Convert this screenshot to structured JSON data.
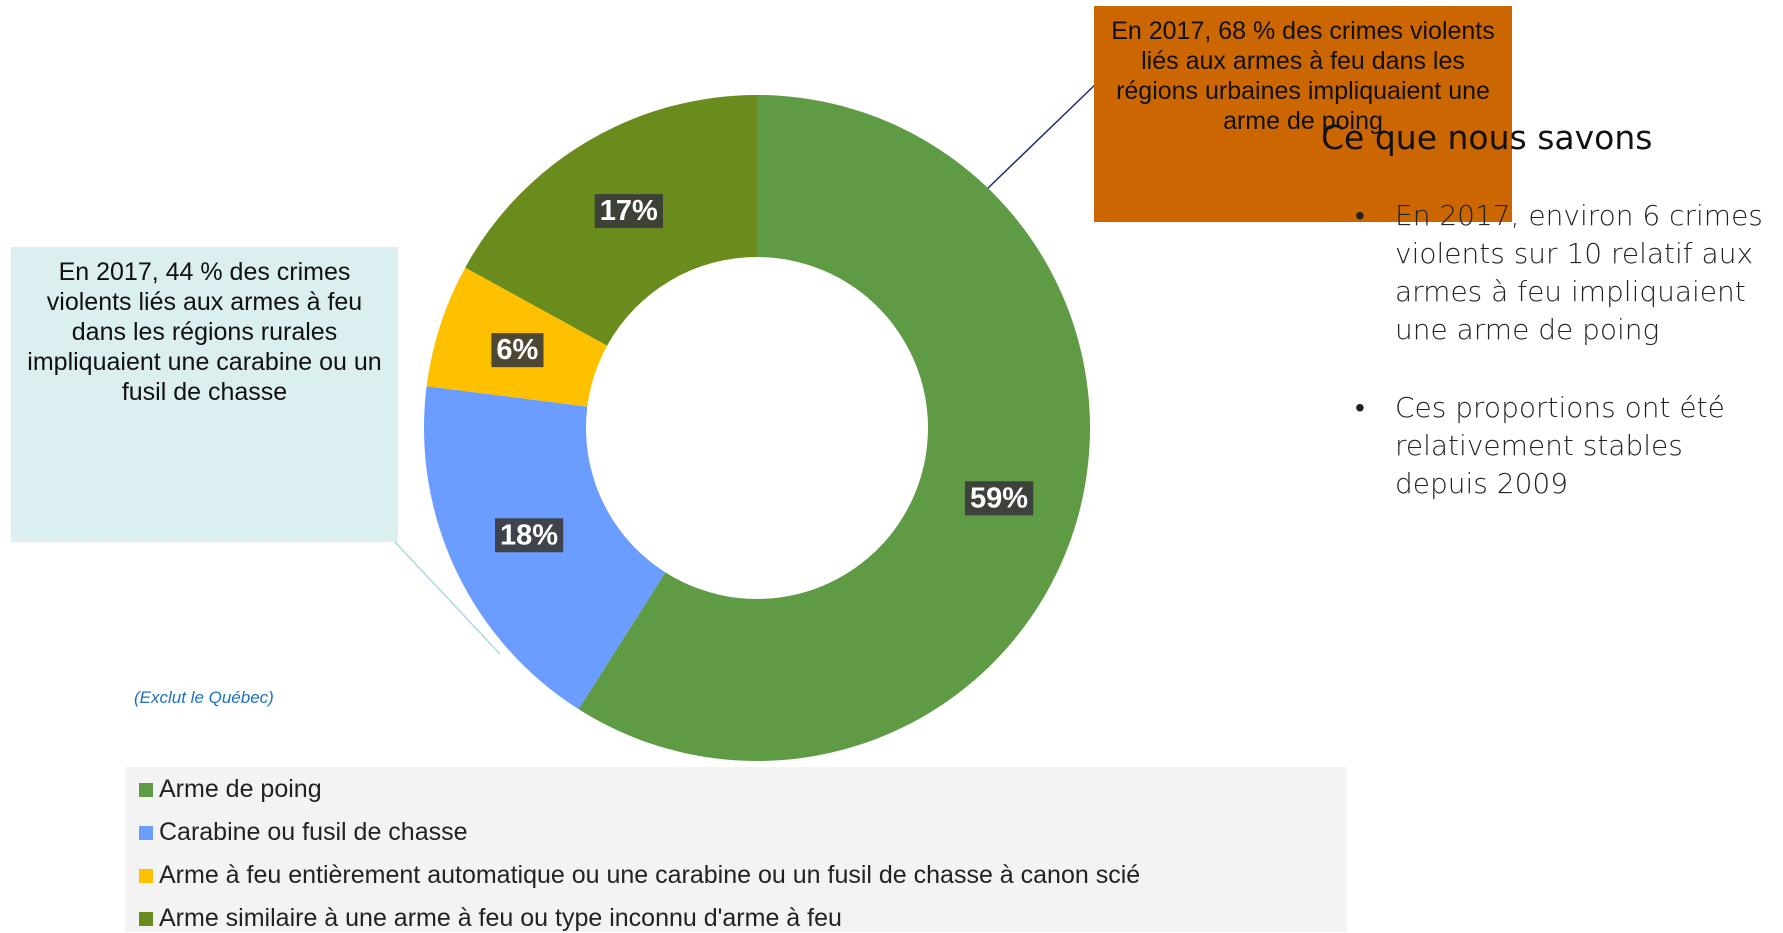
{
  "chart_data": {
    "type": "pie",
    "donut": true,
    "categories": [
      "Arme de poing",
      "Carabine ou fusil de chasse",
      "Arme à feu entièrement automatique ou une carabine ou un fusil de chasse à canon scié",
      "Arme similaire à une arme à feu ou type inconnu d'arme à feu"
    ],
    "values": [
      59,
      18,
      6,
      17
    ],
    "value_labels": [
      "59%",
      "18%",
      "6%",
      "17%"
    ],
    "colors": [
      "#5f9b45",
      "#6a9dff",
      "#ffc000",
      "#6a8c1c"
    ],
    "note": "(Exclut le Québec)",
    "annotations": [
      "En 2017, 68 % des crimes violents liés aux armes à feu dans les régions urbaines impliquaient une arme de poing",
      "En 2017, 44 % des crimes violents liés aux armes à feu dans les régions rurales impliquaient une carabine ou un fusil de chasse"
    ]
  },
  "sidebar": {
    "heading": "Ce que nous savons",
    "bullets": [
      "En 2017, environ 6 crimes violents sur 10 relatif aux armes à feu impliquaient une arme de poing",
      "Ces proportions ont été relativement stables depuis 2009"
    ]
  }
}
